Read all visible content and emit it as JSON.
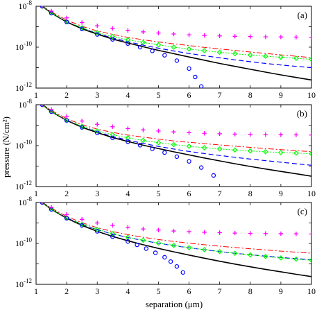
{
  "chart_data": {
    "type": "line",
    "xlabel": "separation (μm)",
    "ylabel": "pressure (N/cm²)",
    "yscale": "log",
    "xlim": [
      1,
      10
    ],
    "ylim": [
      1e-12,
      1e-08
    ],
    "x_ticks": [
      "1",
      "2",
      "3",
      "4",
      "5",
      "6",
      "7",
      "8",
      "9",
      "10"
    ],
    "y_tick_mantissa": "10",
    "y_ticks_exp": [
      "-8",
      "-10",
      "-12"
    ],
    "series_styles": [
      {
        "id": "solid",
        "color": "#000000",
        "style": "solid line"
      },
      {
        "id": "dashed",
        "color": "#0000ff",
        "style": "dashed line"
      },
      {
        "id": "dashdot",
        "color": "#ff0000",
        "style": "dash-dot line"
      },
      {
        "id": "diamonds",
        "color": "#00ff00",
        "style": "diamond markers with dotted line"
      },
      {
        "id": "circles",
        "color": "#0000ff",
        "style": "circle markers"
      },
      {
        "id": "plus",
        "color": "#ff00ff",
        "style": "plus markers"
      }
    ],
    "panels": [
      {
        "label": "(a)",
        "series": [
          {
            "id": "solid",
            "x": [
              1.2,
              1.5,
              2,
              2.5,
              3,
              3.5,
              4,
              4.5,
              5,
              5.5,
              6,
              6.5,
              7,
              7.5,
              8,
              8.5,
              9,
              9.5,
              10
            ],
            "y": [
              1e-08,
              4.6e-09,
              1.7e-09,
              7.9e-10,
              4.3e-10,
              2.5e-10,
              1.6e-10,
              1.05e-10,
              7e-11,
              4.8e-11,
              3.3e-11,
              2.3e-11,
              1.6e-11,
              1.15e-11,
              8.3e-12,
              6e-12,
              4.4e-12,
              3.3e-12,
              2.5e-12
            ]
          },
          {
            "id": "dashed",
            "x": [
              1.2,
              1.5,
              2,
              2.5,
              3,
              3.5,
              4,
              4.5,
              5,
              5.5,
              6,
              6.5,
              7,
              7.5,
              8,
              8.5,
              9,
              9.5,
              10
            ],
            "y": [
              1e-08,
              4.6e-09,
              1.75e-09,
              8.2e-10,
              4.6e-10,
              2.8e-10,
              1.85e-10,
              1.25e-10,
              8.9e-11,
              6.5e-11,
              4.9e-11,
              3.8e-11,
              3e-11,
              2.4e-11,
              1.95e-11,
              1.6e-11,
              1.35e-11,
              1.15e-11,
              1e-11
            ]
          },
          {
            "id": "dashdot",
            "x": [
              1.2,
              1.5,
              2,
              2.5,
              3,
              3.5,
              4,
              4.5,
              5,
              5.5,
              6,
              6.5,
              7,
              7.5,
              8,
              8.5,
              9,
              9.5,
              10
            ],
            "y": [
              1.05e-08,
              5.2e-09,
              2.1e-09,
              1.05e-09,
              6.2e-10,
              4.2e-10,
              3e-10,
              2.3e-10,
              1.8e-10,
              1.45e-10,
              1.2e-10,
              9.8e-11,
              8.2e-11,
              6.9e-11,
              5.8e-11,
              4.9e-11,
              4.2e-11,
              3.6e-11,
              3.1e-11
            ]
          },
          {
            "id": "diamonds",
            "x": [
              1.2,
              1.5,
              2,
              2.5,
              3,
              3.5,
              4,
              4.5,
              5,
              5.5,
              6,
              6.5,
              7,
              7.5,
              8,
              8.5,
              9,
              9.5,
              10
            ],
            "y": [
              1e-08,
              4.7e-09,
              1.8e-09,
              8.8e-10,
              5.1e-10,
              3.3e-10,
              2.3e-10,
              1.7e-10,
              1.3e-10,
              1e-10,
              8.1e-11,
              6.7e-11,
              5.6e-11,
              4.8e-11,
              4.1e-11,
              3.6e-11,
              3.2e-11,
              2.85e-11,
              2.55e-11
            ]
          },
          {
            "id": "circles",
            "x": [
              1.2,
              1.5,
              2,
              2.5,
              3,
              3.5,
              4,
              4.4,
              4.8,
              5.2,
              5.6,
              6,
              6.2,
              6.4
            ],
            "y": [
              1e-08,
              4.6e-09,
              1.7e-09,
              7.8e-10,
              4.2e-10,
              2.4e-10,
              1.5e-10,
              1e-10,
              6.5e-11,
              4e-11,
              2.2e-11,
              9e-12,
              3.5e-12,
              1.2e-12
            ]
          },
          {
            "id": "plus",
            "x": [
              1.2,
              1.5,
              2,
              2.5,
              3,
              3.5,
              4,
              4.5,
              5,
              5.5,
              6,
              6.5,
              7,
              7.5,
              8,
              8.5,
              9,
              9.5,
              10
            ],
            "y": [
              1.05e-08,
              5.8e-09,
              2.7e-09,
              1.6e-09,
              1.1e-09,
              8.2e-10,
              6.6e-10,
              5.6e-10,
              4.9e-10,
              4.4e-10,
              4e-10,
              3.75e-10,
              3.55e-10,
              3.4e-10,
              3.3e-10,
              3.2e-10,
              3.15e-10,
              3.1e-10,
              3.05e-10
            ]
          }
        ]
      },
      {
        "label": "(b)",
        "series": [
          {
            "id": "solid",
            "x": [
              1.2,
              1.5,
              2,
              2.5,
              3,
              3.5,
              4,
              4.5,
              5,
              5.5,
              6,
              6.5,
              7,
              7.5,
              8,
              8.5,
              9,
              9.5,
              10
            ],
            "y": [
              1e-08,
              4.6e-09,
              1.7e-09,
              7.9e-10,
              4.3e-10,
              2.5e-10,
              1.6e-10,
              1.05e-10,
              7.2e-11,
              5e-11,
              3.5e-11,
              2.5e-11,
              1.8e-11,
              1.3e-11,
              9.6e-12,
              7.2e-12,
              5.5e-12,
              4.2e-12,
              3.2e-12
            ]
          },
          {
            "id": "dashed",
            "x": [
              1.2,
              1.5,
              2,
              2.5,
              3,
              3.5,
              4,
              4.5,
              5,
              5.5,
              6,
              6.5,
              7,
              7.5,
              8,
              8.5,
              9,
              9.5,
              10
            ],
            "y": [
              1e-08,
              4.6e-09,
              1.75e-09,
              8.2e-10,
              4.6e-10,
              2.8e-10,
              1.85e-10,
              1.28e-10,
              9.2e-11,
              6.8e-11,
              5.2e-11,
              4.1e-11,
              3.3e-11,
              2.7e-11,
              2.2e-11,
              1.85e-11,
              1.55e-11,
              1.3e-11,
              1.1e-11
            ]
          },
          {
            "id": "dashdot",
            "x": [
              1.2,
              1.5,
              2,
              2.5,
              3,
              3.5,
              4,
              4.5,
              5,
              5.5,
              6,
              6.5,
              7,
              7.5,
              8,
              8.5,
              9,
              9.5,
              10
            ],
            "y": [
              1.05e-08,
              5.2e-09,
              2.1e-09,
              1.05e-09,
              6.4e-10,
              4.4e-10,
              3.3e-10,
              2.6e-10,
              2.1e-10,
              1.7e-10,
              1.45e-10,
              1.25e-10,
              1.08e-10,
              9.4e-11,
              8.2e-11,
              7.2e-11,
              6.4e-11,
              5.7e-11,
              5.1e-11
            ]
          },
          {
            "id": "diamonds",
            "x": [
              1.2,
              1.5,
              2,
              2.5,
              3,
              3.5,
              4,
              4.5,
              5,
              5.5,
              6,
              6.5,
              7,
              7.5,
              8,
              8.5,
              9,
              9.5,
              10
            ],
            "y": [
              1e-08,
              4.7e-09,
              1.8e-09,
              8.8e-10,
              5.2e-10,
              3.4e-10,
              2.4e-10,
              1.8e-10,
              1.4e-10,
              1.12e-10,
              9.3e-11,
              7.9e-11,
              6.9e-11,
              6.1e-11,
              5.5e-11,
              5e-11,
              4.6e-11,
              4.3e-11,
              4e-11
            ]
          },
          {
            "id": "circles",
            "x": [
              1.2,
              1.5,
              2,
              2.5,
              3,
              3.5,
              4,
              4.4,
              4.8,
              5.2,
              5.6,
              6,
              6.4,
              6.8
            ],
            "y": [
              1e-08,
              4.6e-09,
              1.7e-09,
              7.8e-10,
              4.2e-10,
              2.4e-10,
              1.55e-10,
              1.05e-10,
              7e-11,
              4.6e-11,
              2.9e-11,
              1.7e-11,
              8.5e-12,
              3.5e-12
            ]
          },
          {
            "id": "plus",
            "x": [
              1.2,
              1.5,
              2,
              2.5,
              3,
              3.5,
              4,
              4.5,
              5,
              5.5,
              6,
              6.5,
              7,
              7.5,
              8,
              8.5,
              9,
              9.5,
              10
            ],
            "y": [
              1.05e-08,
              5.8e-09,
              2.7e-09,
              1.6e-09,
              1.1e-09,
              8.4e-10,
              6.8e-10,
              5.9e-10,
              5.2e-10,
              4.7e-10,
              4.3e-10,
              4e-10,
              3.8e-10,
              3.65e-10,
              3.55e-10,
              3.45e-10,
              3.4e-10,
              3.35e-10,
              3.3e-10
            ]
          }
        ]
      },
      {
        "label": "(c)",
        "series": [
          {
            "id": "solid",
            "x": [
              1.2,
              1.5,
              2,
              2.5,
              3,
              3.5,
              4,
              4.5,
              5,
              5.5,
              6,
              6.5,
              7,
              7.5,
              8,
              8.5,
              9,
              9.5,
              10
            ],
            "y": [
              1e-08,
              4.6e-09,
              1.7e-09,
              7.6e-10,
              3.9e-10,
              2.2e-10,
              1.35e-10,
              8.6e-11,
              5.7e-11,
              3.9e-11,
              2.7e-11,
              1.9e-11,
              1.35e-11,
              9.8e-12,
              7.2e-12,
              5.4e-12,
              4.1e-12,
              3.1e-12,
              2.4e-12
            ]
          },
          {
            "id": "dashed",
            "x": [
              1.2,
              1.5,
              2,
              2.5,
              3,
              3.5,
              4,
              4.5,
              5,
              5.5,
              6,
              6.5,
              7,
              7.5,
              8,
              8.5,
              9,
              9.5,
              10
            ],
            "y": [
              1e-08,
              4.7e-09,
              1.8e-09,
              8.5e-10,
              4.7e-10,
              2.9e-10,
              1.95e-10,
              1.38e-10,
              1.02e-10,
              7.8e-11,
              6.1e-11,
              4.9e-11,
              4e-11,
              3.3e-11,
              2.8e-11,
              2.4e-11,
              2.05e-11,
              1.8e-11,
              1.6e-11
            ]
          },
          {
            "id": "dashdot",
            "x": [
              1.2,
              1.5,
              2,
              2.5,
              3,
              3.5,
              4,
              4.5,
              5,
              5.5,
              6,
              6.5,
              7,
              7.5,
              8,
              8.5,
              9,
              9.5,
              10
            ],
            "y": [
              1.05e-08,
              5.2e-09,
              2.1e-09,
              1.02e-09,
              5.9e-10,
              3.8e-10,
              2.7e-10,
              2e-10,
              1.55e-10,
              1.25e-10,
              1.02e-10,
              8.6e-11,
              7.3e-11,
              6.3e-11,
              5.5e-11,
              4.8e-11,
              4.2e-11,
              3.75e-11,
              3.35e-11
            ]
          },
          {
            "id": "diamonds",
            "x": [
              1.2,
              1.5,
              2,
              2.5,
              3,
              3.5,
              4,
              4.5,
              5,
              5.5,
              6,
              6.5,
              7,
              7.5,
              8,
              8.5,
              9,
              9.5,
              10
            ],
            "y": [
              1e-08,
              4.7e-09,
              1.8e-09,
              8.5e-10,
              4.8e-10,
              3e-10,
              2e-10,
              1.42e-10,
              1.05e-10,
              8e-11,
              6.2e-11,
              4.95e-11,
              4e-11,
              3.3e-11,
              2.75e-11,
              2.3e-11,
              1.95e-11,
              1.7e-11,
              1.5e-11
            ]
          },
          {
            "id": "circles",
            "x": [
              1.2,
              1.5,
              2,
              2.5,
              3,
              3.5,
              4,
              4.3,
              4.6,
              4.9,
              5.2,
              5.4,
              5.6,
              5.8
            ],
            "y": [
              1e-08,
              4.6e-09,
              1.7e-09,
              7.6e-10,
              3.9e-10,
              2.15e-10,
              1.25e-10,
              8.5e-11,
              5.6e-11,
              3.5e-11,
              2.1e-11,
              1.3e-11,
              7.5e-12,
              3.8e-12
            ]
          },
          {
            "id": "plus",
            "x": [
              1.2,
              1.5,
              2,
              2.5,
              3,
              3.5,
              4,
              4.5,
              5,
              5.5,
              6,
              6.5,
              7,
              7.5,
              8,
              8.5,
              9,
              9.5,
              10
            ],
            "y": [
              1.05e-08,
              5.8e-09,
              2.6e-09,
              1.5e-09,
              1e-09,
              7.6e-10,
              6.1e-10,
              5.1e-10,
              4.5e-10,
              4.05e-10,
              3.75e-10,
              3.5e-10,
              3.35e-10,
              3.2e-10,
              3.1e-10,
              3.05e-10,
              3e-10,
              2.95e-10,
              2.9e-10
            ]
          }
        ]
      }
    ]
  }
}
